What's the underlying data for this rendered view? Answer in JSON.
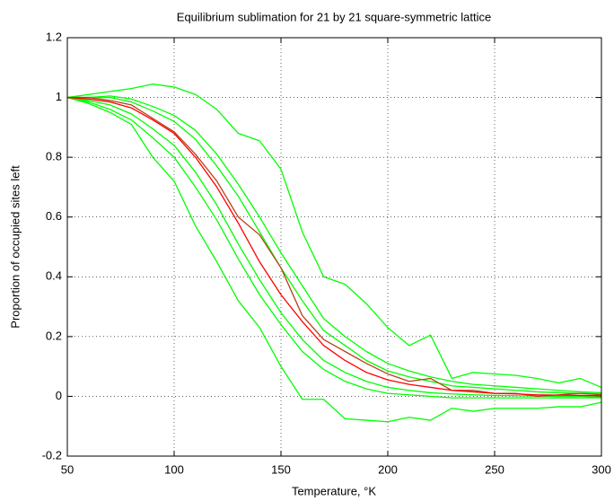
{
  "chart_data": {
    "type": "line",
    "title": "Equilibrium sublimation for 21 by 21 square-symmetric lattice",
    "xlabel": "Temperature, °K",
    "ylabel": "Proportion of occupied sites left",
    "x": [
      50,
      60,
      70,
      80,
      90,
      100,
      110,
      120,
      130,
      140,
      150,
      160,
      170,
      180,
      190,
      200,
      210,
      220,
      230,
      240,
      250,
      260,
      270,
      280,
      290,
      300
    ],
    "xlim": [
      50,
      300
    ],
    "xticks": [
      50,
      100,
      150,
      200,
      250,
      300
    ],
    "ylim": [
      -0.2,
      1.2
    ],
    "yticks": [
      -0.2,
      0,
      0.2,
      0.4,
      0.6,
      0.8,
      1,
      1.2
    ],
    "grid": true,
    "series": [
      {
        "color": "#00ff00",
        "values": [
          1.0,
          1.01,
          1.02,
          1.03,
          1.045,
          1.035,
          1.01,
          0.96,
          0.88,
          0.855,
          0.76,
          0.55,
          0.4,
          0.375,
          0.31,
          0.23,
          0.17,
          0.205,
          0.06,
          0.08,
          0.075,
          0.07,
          0.06,
          0.045,
          0.06,
          0.03
        ]
      },
      {
        "color": "#00ff00",
        "values": [
          1.0,
          0.98,
          0.95,
          0.91,
          0.8,
          0.72,
          0.57,
          0.45,
          0.32,
          0.23,
          0.1,
          -0.01,
          -0.01,
          -0.075,
          -0.08,
          -0.085,
          -0.07,
          -0.08,
          -0.04,
          -0.05,
          -0.04,
          -0.04,
          -0.04,
          -0.035,
          -0.035,
          -0.02
        ]
      },
      {
        "color": "#00ff00",
        "values": [
          1.0,
          1.0,
          1.005,
          0.995,
          0.97,
          0.94,
          0.89,
          0.81,
          0.71,
          0.6,
          0.48,
          0.37,
          0.26,
          0.2,
          0.15,
          0.11,
          0.085,
          0.065,
          0.05,
          0.04,
          0.035,
          0.03,
          0.025,
          0.02,
          0.015,
          0.012
        ]
      },
      {
        "color": "#00ff00",
        "values": [
          1.0,
          1.0,
          1.0,
          0.985,
          0.955,
          0.92,
          0.86,
          0.77,
          0.67,
          0.55,
          0.43,
          0.32,
          0.22,
          0.17,
          0.12,
          0.085,
          0.065,
          0.05,
          0.035,
          0.03,
          0.025,
          0.02,
          0.015,
          0.012,
          0.01,
          0.008
        ]
      },
      {
        "color": "#00ff00",
        "values": [
          1.0,
          0.99,
          0.975,
          0.945,
          0.895,
          0.84,
          0.75,
          0.64,
          0.51,
          0.39,
          0.28,
          0.19,
          0.12,
          0.08,
          0.05,
          0.03,
          0.02,
          0.012,
          0.008,
          0.005,
          0.003,
          0.002,
          0.001,
          0.0,
          0.0,
          -0.002
        ]
      },
      {
        "color": "#00ff00",
        "values": [
          1.0,
          0.985,
          0.96,
          0.925,
          0.865,
          0.8,
          0.7,
          0.59,
          0.46,
          0.34,
          0.24,
          0.15,
          0.09,
          0.05,
          0.025,
          0.01,
          0.005,
          0.0,
          -0.005,
          -0.005,
          -0.005,
          -0.005,
          -0.005,
          -0.005,
          -0.005,
          -0.005
        ]
      },
      {
        "color": "#b8401c",
        "values": [
          1.0,
          1.0,
          0.99,
          0.975,
          0.93,
          0.885,
          0.81,
          0.72,
          0.6,
          0.54,
          0.43,
          0.27,
          0.19,
          0.15,
          0.11,
          0.075,
          0.05,
          0.06,
          0.02,
          0.02,
          0.01,
          0.01,
          0.0,
          0.005,
          0.01,
          0.005
        ]
      },
      {
        "color": "#ff0000",
        "values": [
          1.0,
          0.995,
          0.985,
          0.965,
          0.925,
          0.88,
          0.8,
          0.7,
          0.58,
          0.45,
          0.34,
          0.25,
          0.17,
          0.12,
          0.08,
          0.055,
          0.04,
          0.03,
          0.02,
          0.015,
          0.01,
          0.008,
          0.005,
          0.004,
          0.003,
          0.002
        ]
      }
    ]
  }
}
